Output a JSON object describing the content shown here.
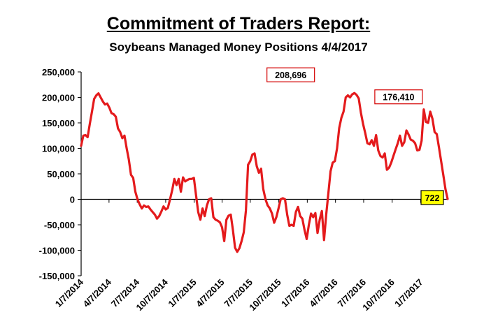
{
  "chart_data": {
    "type": "line",
    "title": "Commitment of Traders Report:",
    "subtitle": "Soybeans Managed Money Positions 4/4/2017",
    "xlabel": "",
    "ylabel": "",
    "ylim": [
      -150000,
      250000
    ],
    "yticks": [
      250000,
      200000,
      150000,
      100000,
      50000,
      0,
      -50000,
      -100000,
      -150000
    ],
    "ytick_labels": [
      "250,000",
      "200,000",
      "150,000",
      "100,000",
      "50,000",
      "0",
      "-50,000",
      "-100,000",
      "-150,000"
    ],
    "xlim": [
      "2014-01-07",
      "2017-04-04"
    ],
    "xtick_labels": [
      "1/7/2014",
      "4/7/2014",
      "7/7/2014",
      "10/7/2014",
      "1/7/2015",
      "4/7/2015",
      "7/7/2015",
      "10/7/2015",
      "1/7/2016",
      "4/7/2016",
      "7/7/2016",
      "10/7/2016",
      "1/7/2017"
    ],
    "xtick_dates": [
      "2014-01-07",
      "2014-04-07",
      "2014-07-07",
      "2014-10-07",
      "2015-01-07",
      "2015-04-07",
      "2015-07-07",
      "2015-10-07",
      "2016-01-07",
      "2016-04-07",
      "2016-07-07",
      "2016-10-07",
      "2017-01-07"
    ],
    "grid": false,
    "series": [
      {
        "color": "#e41a1c",
        "points": [
          [
            "2014-01-07",
            105000
          ],
          [
            "2014-01-14",
            125000
          ],
          [
            "2014-01-21",
            126000
          ],
          [
            "2014-01-28",
            122000
          ],
          [
            "2014-02-04",
            148000
          ],
          [
            "2014-02-11",
            172000
          ],
          [
            "2014-02-18",
            197000
          ],
          [
            "2014-02-25",
            204000
          ],
          [
            "2014-03-04",
            208000
          ],
          [
            "2014-03-11",
            200000
          ],
          [
            "2014-03-18",
            192000
          ],
          [
            "2014-03-25",
            186000
          ],
          [
            "2014-04-01",
            188000
          ],
          [
            "2014-04-08",
            180000
          ],
          [
            "2014-04-15",
            169000
          ],
          [
            "2014-04-22",
            167000
          ],
          [
            "2014-04-29",
            162000
          ],
          [
            "2014-05-06",
            139000
          ],
          [
            "2014-05-13",
            132000
          ],
          [
            "2014-05-20",
            120000
          ],
          [
            "2014-05-27",
            125000
          ],
          [
            "2014-06-03",
            100000
          ],
          [
            "2014-06-10",
            78000
          ],
          [
            "2014-06-17",
            48000
          ],
          [
            "2014-06-24",
            42000
          ],
          [
            "2014-07-01",
            15000
          ],
          [
            "2014-07-08",
            0
          ],
          [
            "2014-07-15",
            -10000
          ],
          [
            "2014-07-22",
            -18000
          ],
          [
            "2014-07-29",
            -12000
          ],
          [
            "2014-08-05",
            -15000
          ],
          [
            "2014-08-12",
            -14000
          ],
          [
            "2014-08-19",
            -20000
          ],
          [
            "2014-08-26",
            -25000
          ],
          [
            "2014-09-02",
            -30000
          ],
          [
            "2014-09-09",
            -38000
          ],
          [
            "2014-09-16",
            -33000
          ],
          [
            "2014-09-23",
            -24000
          ],
          [
            "2014-09-30",
            -14000
          ],
          [
            "2014-10-07",
            -20000
          ],
          [
            "2014-10-14",
            -17000
          ],
          [
            "2014-10-21",
            0
          ],
          [
            "2014-10-28",
            18000
          ],
          [
            "2014-11-04",
            40000
          ],
          [
            "2014-11-11",
            28000
          ],
          [
            "2014-11-18",
            40000
          ],
          [
            "2014-11-25",
            15000
          ],
          [
            "2014-12-02",
            43000
          ],
          [
            "2014-12-09",
            35000
          ],
          [
            "2014-12-16",
            38000
          ],
          [
            "2014-12-23",
            40000
          ],
          [
            "2014-12-30",
            40000
          ],
          [
            "2015-01-06",
            42000
          ],
          [
            "2015-01-13",
            8000
          ],
          [
            "2015-01-20",
            -25000
          ],
          [
            "2015-01-27",
            -40000
          ],
          [
            "2015-02-03",
            -18000
          ],
          [
            "2015-02-10",
            -33000
          ],
          [
            "2015-02-17",
            -12000
          ],
          [
            "2015-02-24",
            0
          ],
          [
            "2015-03-03",
            2000
          ],
          [
            "2015-03-10",
            -35000
          ],
          [
            "2015-03-17",
            -40000
          ],
          [
            "2015-03-24",
            -42000
          ],
          [
            "2015-03-31",
            -45000
          ],
          [
            "2015-04-07",
            -55000
          ],
          [
            "2015-04-14",
            -82000
          ],
          [
            "2015-04-21",
            -40000
          ],
          [
            "2015-04-28",
            -32000
          ],
          [
            "2015-05-05",
            -30000
          ],
          [
            "2015-05-12",
            -60000
          ],
          [
            "2015-05-19",
            -95000
          ],
          [
            "2015-05-26",
            -103000
          ],
          [
            "2015-06-02",
            -96000
          ],
          [
            "2015-06-09",
            -82000
          ],
          [
            "2015-06-16",
            -65000
          ],
          [
            "2015-06-23",
            -22000
          ],
          [
            "2015-06-30",
            68000
          ],
          [
            "2015-07-07",
            75000
          ],
          [
            "2015-07-14",
            88000
          ],
          [
            "2015-07-21",
            90000
          ],
          [
            "2015-07-28",
            65000
          ],
          [
            "2015-08-04",
            52000
          ],
          [
            "2015-08-11",
            60000
          ],
          [
            "2015-08-18",
            20000
          ],
          [
            "2015-08-25",
            0
          ],
          [
            "2015-09-01",
            -12000
          ],
          [
            "2015-09-08",
            -18000
          ],
          [
            "2015-09-15",
            -28000
          ],
          [
            "2015-09-22",
            -46000
          ],
          [
            "2015-09-29",
            -35000
          ],
          [
            "2015-10-06",
            -18000
          ],
          [
            "2015-10-13",
            0
          ],
          [
            "2015-10-20",
            2000
          ],
          [
            "2015-10-27",
            0
          ],
          [
            "2015-11-03",
            -30000
          ],
          [
            "2015-11-10",
            -52000
          ],
          [
            "2015-11-17",
            -50000
          ],
          [
            "2015-11-24",
            -52000
          ],
          [
            "2015-12-01",
            -25000
          ],
          [
            "2015-12-08",
            -15000
          ],
          [
            "2015-12-15",
            -33000
          ],
          [
            "2015-12-22",
            -38000
          ],
          [
            "2015-12-29",
            -60000
          ],
          [
            "2016-01-05",
            -78000
          ],
          [
            "2016-01-12",
            -50000
          ],
          [
            "2016-01-19",
            -28000
          ],
          [
            "2016-01-26",
            -35000
          ],
          [
            "2016-02-02",
            -27000
          ],
          [
            "2016-02-09",
            -66000
          ],
          [
            "2016-02-16",
            -40000
          ],
          [
            "2016-02-23",
            -23000
          ],
          [
            "2016-03-01",
            -80000
          ],
          [
            "2016-03-08",
            -30000
          ],
          [
            "2016-03-15",
            12000
          ],
          [
            "2016-03-22",
            55000
          ],
          [
            "2016-03-29",
            72000
          ],
          [
            "2016-04-05",
            75000
          ],
          [
            "2016-04-12",
            100000
          ],
          [
            "2016-04-19",
            140000
          ],
          [
            "2016-04-26",
            160000
          ],
          [
            "2016-05-03",
            172000
          ],
          [
            "2016-05-10",
            200000
          ],
          [
            "2016-05-17",
            204000
          ],
          [
            "2016-05-24",
            200000
          ],
          [
            "2016-05-31",
            206000
          ],
          [
            "2016-06-07",
            208696
          ],
          [
            "2016-06-14",
            205000
          ],
          [
            "2016-06-21",
            198000
          ],
          [
            "2016-06-28",
            170000
          ],
          [
            "2016-07-05",
            148000
          ],
          [
            "2016-07-12",
            130000
          ],
          [
            "2016-07-19",
            110000
          ],
          [
            "2016-07-26",
            108000
          ],
          [
            "2016-08-02",
            116000
          ],
          [
            "2016-08-09",
            105000
          ],
          [
            "2016-08-16",
            126000
          ],
          [
            "2016-08-23",
            96000
          ],
          [
            "2016-08-30",
            85000
          ],
          [
            "2016-09-06",
            82000
          ],
          [
            "2016-09-13",
            90000
          ],
          [
            "2016-09-20",
            58000
          ],
          [
            "2016-09-27",
            62000
          ],
          [
            "2016-10-04",
            72000
          ],
          [
            "2016-10-11",
            85000
          ],
          [
            "2016-10-18",
            98000
          ],
          [
            "2016-10-25",
            110000
          ],
          [
            "2016-11-01",
            125000
          ],
          [
            "2016-11-08",
            105000
          ],
          [
            "2016-11-15",
            112000
          ],
          [
            "2016-11-22",
            135000
          ],
          [
            "2016-11-29",
            127000
          ],
          [
            "2016-12-06",
            117000
          ],
          [
            "2016-12-13",
            115000
          ],
          [
            "2016-12-20",
            110000
          ],
          [
            "2016-12-27",
            96000
          ],
          [
            "2017-01-03",
            97000
          ],
          [
            "2017-01-10",
            115000
          ],
          [
            "2017-01-17",
            176410
          ],
          [
            "2017-01-24",
            152000
          ],
          [
            "2017-01-31",
            150000
          ],
          [
            "2017-02-07",
            172000
          ],
          [
            "2017-02-14",
            158000
          ],
          [
            "2017-02-21",
            132000
          ],
          [
            "2017-02-28",
            128000
          ],
          [
            "2017-03-07",
            102000
          ],
          [
            "2017-03-14",
            75000
          ],
          [
            "2017-03-21",
            48000
          ],
          [
            "2017-03-28",
            20000
          ],
          [
            "2017-04-04",
            722
          ]
        ]
      }
    ],
    "annotations": [
      {
        "text": "208,696",
        "date": "2016-06-07",
        "value": 208696,
        "style": "box-white-red"
      },
      {
        "text": "176,410",
        "date": "2017-01-17",
        "value": 176410,
        "style": "box-white-red"
      },
      {
        "text": "722",
        "date": "2017-04-04",
        "value": 722,
        "style": "box-yellow"
      }
    ]
  }
}
